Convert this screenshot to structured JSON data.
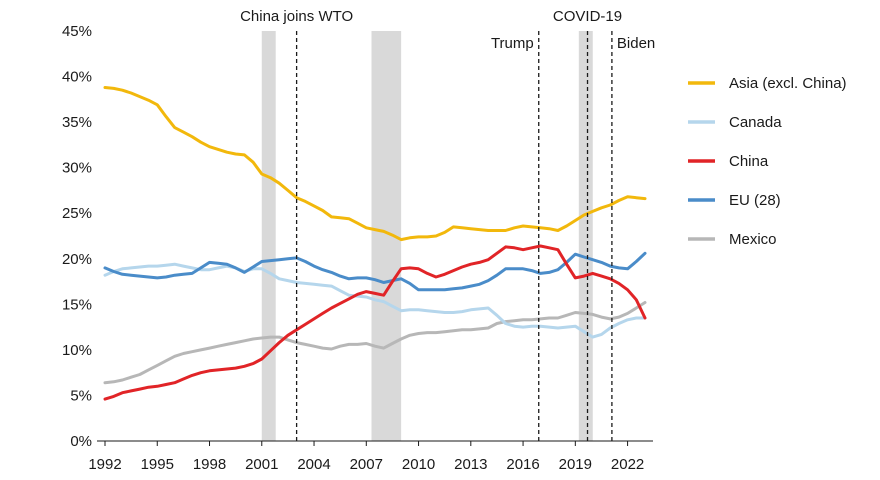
{
  "chart_data": {
    "type": "line",
    "title": "",
    "xlabel": "",
    "ylabel": "",
    "ylim": [
      0,
      45
    ],
    "xlim": [
      1992,
      2023
    ],
    "y_ticks": [
      0,
      5,
      10,
      15,
      20,
      25,
      30,
      35,
      40,
      45
    ],
    "y_tick_labels": [
      "0%",
      "5%",
      "10%",
      "15%",
      "20%",
      "25%",
      "30%",
      "35%",
      "40%",
      "45%"
    ],
    "x_ticks": [
      1992,
      1995,
      1998,
      2001,
      2004,
      2007,
      2010,
      2013,
      2016,
      2019,
      2022
    ],
    "x_tick_labels": [
      "1992",
      "1995",
      "1998",
      "2001",
      "2004",
      "2007",
      "2010",
      "2013",
      "2016",
      "2019",
      "2022"
    ],
    "x": [
      1992,
      1992.5,
      1993,
      1993.5,
      1994,
      1994.5,
      1995,
      1995.5,
      1996,
      1996.5,
      1997,
      1997.5,
      1998,
      1998.5,
      1999,
      1999.5,
      2000,
      2000.5,
      2001,
      2001.5,
      2002,
      2002.5,
      2003,
      2003.5,
      2004,
      2004.5,
      2005,
      2005.5,
      2006,
      2006.5,
      2007,
      2007.5,
      2008,
      2008.5,
      2009,
      2009.5,
      2010,
      2010.5,
      2011,
      2011.5,
      2012,
      2012.5,
      2013,
      2013.5,
      2014,
      2014.5,
      2015,
      2015.5,
      2016,
      2016.5,
      2017,
      2017.5,
      2018,
      2018.5,
      2019,
      2019.5,
      2020,
      2020.5,
      2021,
      2021.5,
      2022,
      2022.5,
      2023
    ],
    "series": [
      {
        "name": "Asia (excl. China)",
        "color": "#f2b80c",
        "values": [
          38.8,
          38.7,
          38.5,
          38.2,
          37.8,
          37.4,
          36.9,
          35.6,
          34.4,
          33.9,
          33.4,
          32.8,
          32.3,
          32.0,
          31.7,
          31.5,
          31.4,
          30.6,
          29.3,
          28.9,
          28.3,
          27.5,
          26.7,
          26.3,
          25.8,
          25.3,
          24.6,
          24.5,
          24.4,
          23.9,
          23.4,
          23.2,
          23.0,
          22.6,
          22.1,
          22.3,
          22.4,
          22.4,
          22.5,
          22.9,
          23.5,
          23.4,
          23.3,
          23.2,
          23.1,
          23.1,
          23.1,
          23.4,
          23.6,
          23.5,
          23.4,
          23.3,
          23.1,
          23.6,
          24.2,
          24.8,
          25.2,
          25.6,
          25.9,
          26.4,
          26.8,
          26.7,
          26.6
        ]
      },
      {
        "name": "Canada",
        "color": "#b5d6ec",
        "values": [
          18.2,
          18.6,
          18.9,
          19.0,
          19.1,
          19.2,
          19.2,
          19.3,
          19.4,
          19.2,
          19.0,
          18.8,
          18.8,
          19.0,
          19.2,
          19.0,
          18.6,
          18.9,
          18.9,
          18.4,
          17.8,
          17.6,
          17.4,
          17.3,
          17.2,
          17.1,
          17.0,
          16.5,
          16.0,
          15.9,
          15.8,
          15.5,
          15.3,
          14.8,
          14.3,
          14.4,
          14.4,
          14.3,
          14.2,
          14.1,
          14.1,
          14.2,
          14.4,
          14.5,
          14.6,
          13.8,
          12.9,
          12.6,
          12.5,
          12.6,
          12.6,
          12.5,
          12.4,
          12.5,
          12.6,
          12.0,
          11.4,
          11.7,
          12.4,
          12.9,
          13.3,
          13.5,
          13.5
        ]
      },
      {
        "name": "China",
        "color": "#e12427",
        "values": [
          4.6,
          4.9,
          5.3,
          5.5,
          5.7,
          5.9,
          6.0,
          6.2,
          6.4,
          6.8,
          7.2,
          7.5,
          7.7,
          7.8,
          7.9,
          8.0,
          8.2,
          8.5,
          9.0,
          9.9,
          10.8,
          11.6,
          12.2,
          12.8,
          13.4,
          14.0,
          14.6,
          15.1,
          15.6,
          16.1,
          16.4,
          16.2,
          16.0,
          17.5,
          18.9,
          19.0,
          18.9,
          18.4,
          18.0,
          18.3,
          18.7,
          19.1,
          19.4,
          19.6,
          19.9,
          20.6,
          21.3,
          21.2,
          21.0,
          21.2,
          21.4,
          21.2,
          21.0,
          19.4,
          17.9,
          18.1,
          18.4,
          18.1,
          17.8,
          17.3,
          16.6,
          15.5,
          13.5
        ]
      },
      {
        "name": "EU (28)",
        "color": "#4a8cc9",
        "values": [
          19.0,
          18.6,
          18.3,
          18.2,
          18.1,
          18.0,
          17.9,
          18.0,
          18.2,
          18.3,
          18.4,
          19.0,
          19.6,
          19.5,
          19.4,
          19.0,
          18.5,
          19.1,
          19.7,
          19.8,
          19.9,
          20.0,
          20.1,
          19.7,
          19.2,
          18.8,
          18.5,
          18.1,
          17.8,
          17.9,
          17.9,
          17.7,
          17.4,
          17.6,
          17.8,
          17.3,
          16.6,
          16.6,
          16.6,
          16.6,
          16.7,
          16.8,
          17.0,
          17.2,
          17.6,
          18.2,
          18.9,
          18.9,
          18.9,
          18.7,
          18.4,
          18.5,
          18.8,
          19.6,
          20.5,
          20.2,
          19.9,
          19.6,
          19.2,
          19.0,
          18.9,
          19.7,
          20.6
        ]
      },
      {
        "name": "Mexico",
        "color": "#b7b7b7",
        "values": [
          6.4,
          6.5,
          6.7,
          7.0,
          7.3,
          7.8,
          8.3,
          8.8,
          9.3,
          9.6,
          9.8,
          10.0,
          10.2,
          10.4,
          10.6,
          10.8,
          11.0,
          11.2,
          11.3,
          11.4,
          11.4,
          11.1,
          10.8,
          10.6,
          10.4,
          10.2,
          10.1,
          10.4,
          10.6,
          10.6,
          10.7,
          10.4,
          10.2,
          10.7,
          11.2,
          11.6,
          11.8,
          11.9,
          11.9,
          12.0,
          12.1,
          12.2,
          12.2,
          12.3,
          12.4,
          12.9,
          13.1,
          13.2,
          13.3,
          13.3,
          13.4,
          13.5,
          13.5,
          13.8,
          14.1,
          14.0,
          13.9,
          13.6,
          13.4,
          13.6,
          14.0,
          14.6,
          15.2
        ]
      }
    ],
    "shaded_periods": [
      [
        2001,
        2001.8
      ],
      [
        2007.3,
        2009
      ],
      [
        2019.2,
        2020
      ]
    ],
    "vlines": [
      {
        "x": 2003,
        "label": "China joins WTO"
      },
      {
        "x": 2016.9,
        "label": "Trump"
      },
      {
        "x": 2019.7,
        "label": "COVID-19"
      },
      {
        "x": 2021.1,
        "label": "Biden"
      }
    ],
    "legend_position": "right"
  }
}
